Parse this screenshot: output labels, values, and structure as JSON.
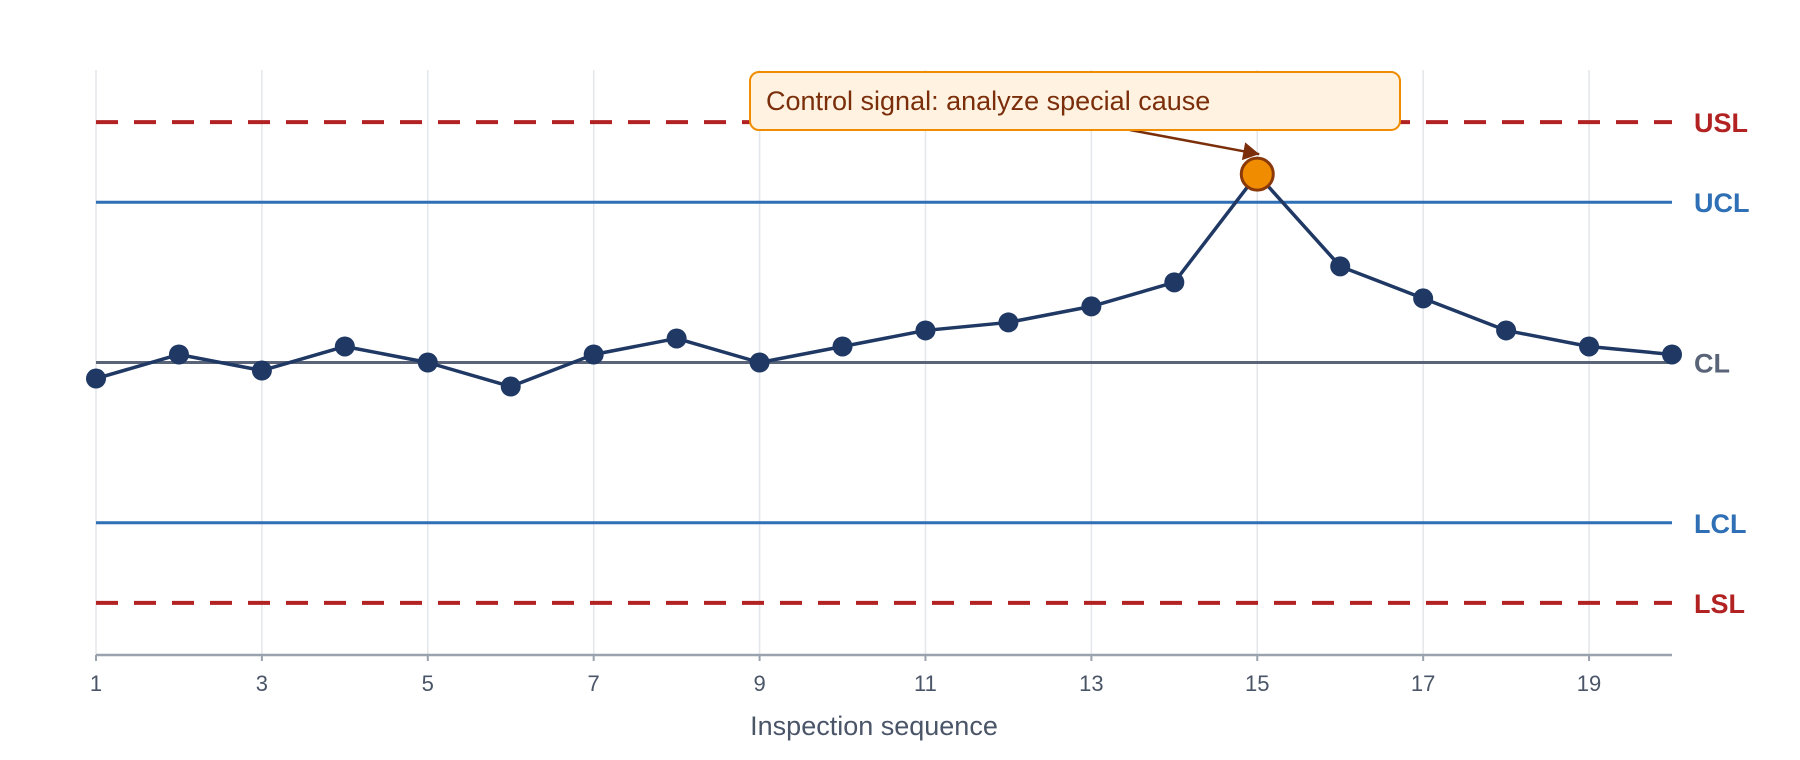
{
  "chart_data": {
    "type": "line",
    "title": "",
    "xlabel": "Inspection sequence",
    "ylabel": "",
    "x": [
      1,
      2,
      3,
      4,
      5,
      6,
      7,
      8,
      9,
      10,
      11,
      12,
      13,
      14,
      15,
      16,
      17,
      18,
      19,
      20
    ],
    "xticks": [
      1,
      3,
      5,
      7,
      9,
      11,
      13,
      15,
      17,
      19
    ],
    "ylim": [
      -7.3,
      7.3
    ],
    "grid_x": true,
    "grid_y": false,
    "series": [
      {
        "values": [
          -0.4,
          0.2,
          -0.2,
          0.4,
          0.0,
          -0.6,
          0.2,
          0.6,
          0.0,
          0.4,
          0.8,
          1.0,
          1.4,
          2.0,
          4.7,
          2.4,
          1.6,
          0.8,
          0.4,
          0.2
        ],
        "color": "#1f3864"
      }
    ],
    "limits": [
      {
        "label": "USL",
        "value": 6.0,
        "style": "dashed",
        "color": "#b22222"
      },
      {
        "label": "UCL",
        "value": 4.0,
        "style": "solid",
        "color": "#2e6fb5"
      },
      {
        "label": "CL",
        "value": 0.0,
        "style": "solid",
        "color": "#5a6478"
      },
      {
        "label": "LCL",
        "value": -4.0,
        "style": "solid",
        "color": "#2e6fb5"
      },
      {
        "label": "LSL",
        "value": -6.0,
        "style": "dashed",
        "color": "#b22222"
      }
    ],
    "highlight": {
      "x": 15,
      "color": "#f08c00",
      "stroke": "#8a3a0a"
    },
    "annotation": {
      "text": "Control signal: analyze special cause",
      "x": 15,
      "bg": "#fff2e0",
      "border": "#f08c00"
    }
  }
}
